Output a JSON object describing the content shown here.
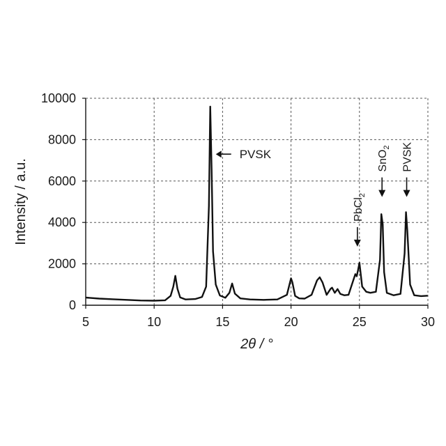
{
  "chart_data": {
    "type": "line",
    "xlabel": "2θ / °",
    "ylabel": "Intensity / a.u.",
    "xlim": [
      5,
      30
    ],
    "ylim": [
      0,
      10000
    ],
    "xticks": [
      5,
      10,
      15,
      20,
      25,
      30
    ],
    "yticks": [
      0,
      2000,
      4000,
      6000,
      8000,
      10000
    ],
    "xtick_labels": [
      "5",
      "10",
      "15",
      "20",
      "25",
      "30"
    ],
    "ytick_labels": [
      "0",
      "2000",
      "4000",
      "6000",
      "8000",
      "10000"
    ],
    "grid": true,
    "grid_style": "dashed",
    "line_color": "#111111",
    "x": [
      5.0,
      6.0,
      7.0,
      8.0,
      9.0,
      10.0,
      10.8,
      11.2,
      11.4,
      11.55,
      11.7,
      11.9,
      12.3,
      13.0,
      13.5,
      13.8,
      14.0,
      14.1,
      14.2,
      14.3,
      14.5,
      14.8,
      15.2,
      15.5,
      15.7,
      15.9,
      16.3,
      17.0,
      18.0,
      19.0,
      19.7,
      20.0,
      20.1,
      20.3,
      20.6,
      21.0,
      21.5,
      21.9,
      22.1,
      22.3,
      22.6,
      22.9,
      23.0,
      23.2,
      23.4,
      23.6,
      23.9,
      24.2,
      24.6,
      24.7,
      24.8,
      24.9,
      25.0,
      25.2,
      25.5,
      25.8,
      26.2,
      26.5,
      26.6,
      26.7,
      26.8,
      27.0,
      27.5,
      28.0,
      28.3,
      28.4,
      28.5,
      28.7,
      29.0,
      29.5,
      30.0
    ],
    "y": [
      370,
      320,
      290,
      260,
      230,
      220,
      240,
      450,
      900,
      1420,
      800,
      380,
      280,
      300,
      400,
      900,
      4800,
      9600,
      6500,
      2600,
      1000,
      470,
      360,
      600,
      1050,
      560,
      330,
      280,
      260,
      280,
      500,
      1300,
      1100,
      450,
      330,
      320,
      500,
      1200,
      1350,
      1100,
      500,
      800,
      850,
      600,
      780,
      550,
      480,
      500,
      1300,
      1500,
      1400,
      1700,
      2050,
      900,
      650,
      600,
      650,
      2200,
      4400,
      3900,
      1600,
      600,
      480,
      550,
      2500,
      4500,
      3600,
      1000,
      480,
      440,
      460
    ],
    "annotations": [
      {
        "text": "PVSK",
        "sub": "",
        "x": 14.1,
        "y": 7300,
        "orientation": "horizontal"
      },
      {
        "text": "PbCl",
        "sub": "2",
        "x": 24.85,
        "y": 2900,
        "orientation": "vertical"
      },
      {
        "text": "SnO",
        "sub": "2",
        "x": 26.65,
        "y": 5300,
        "orientation": "vertical"
      },
      {
        "text": "PVSK",
        "sub": "",
        "x": 28.45,
        "y": 5300,
        "orientation": "vertical"
      }
    ]
  }
}
